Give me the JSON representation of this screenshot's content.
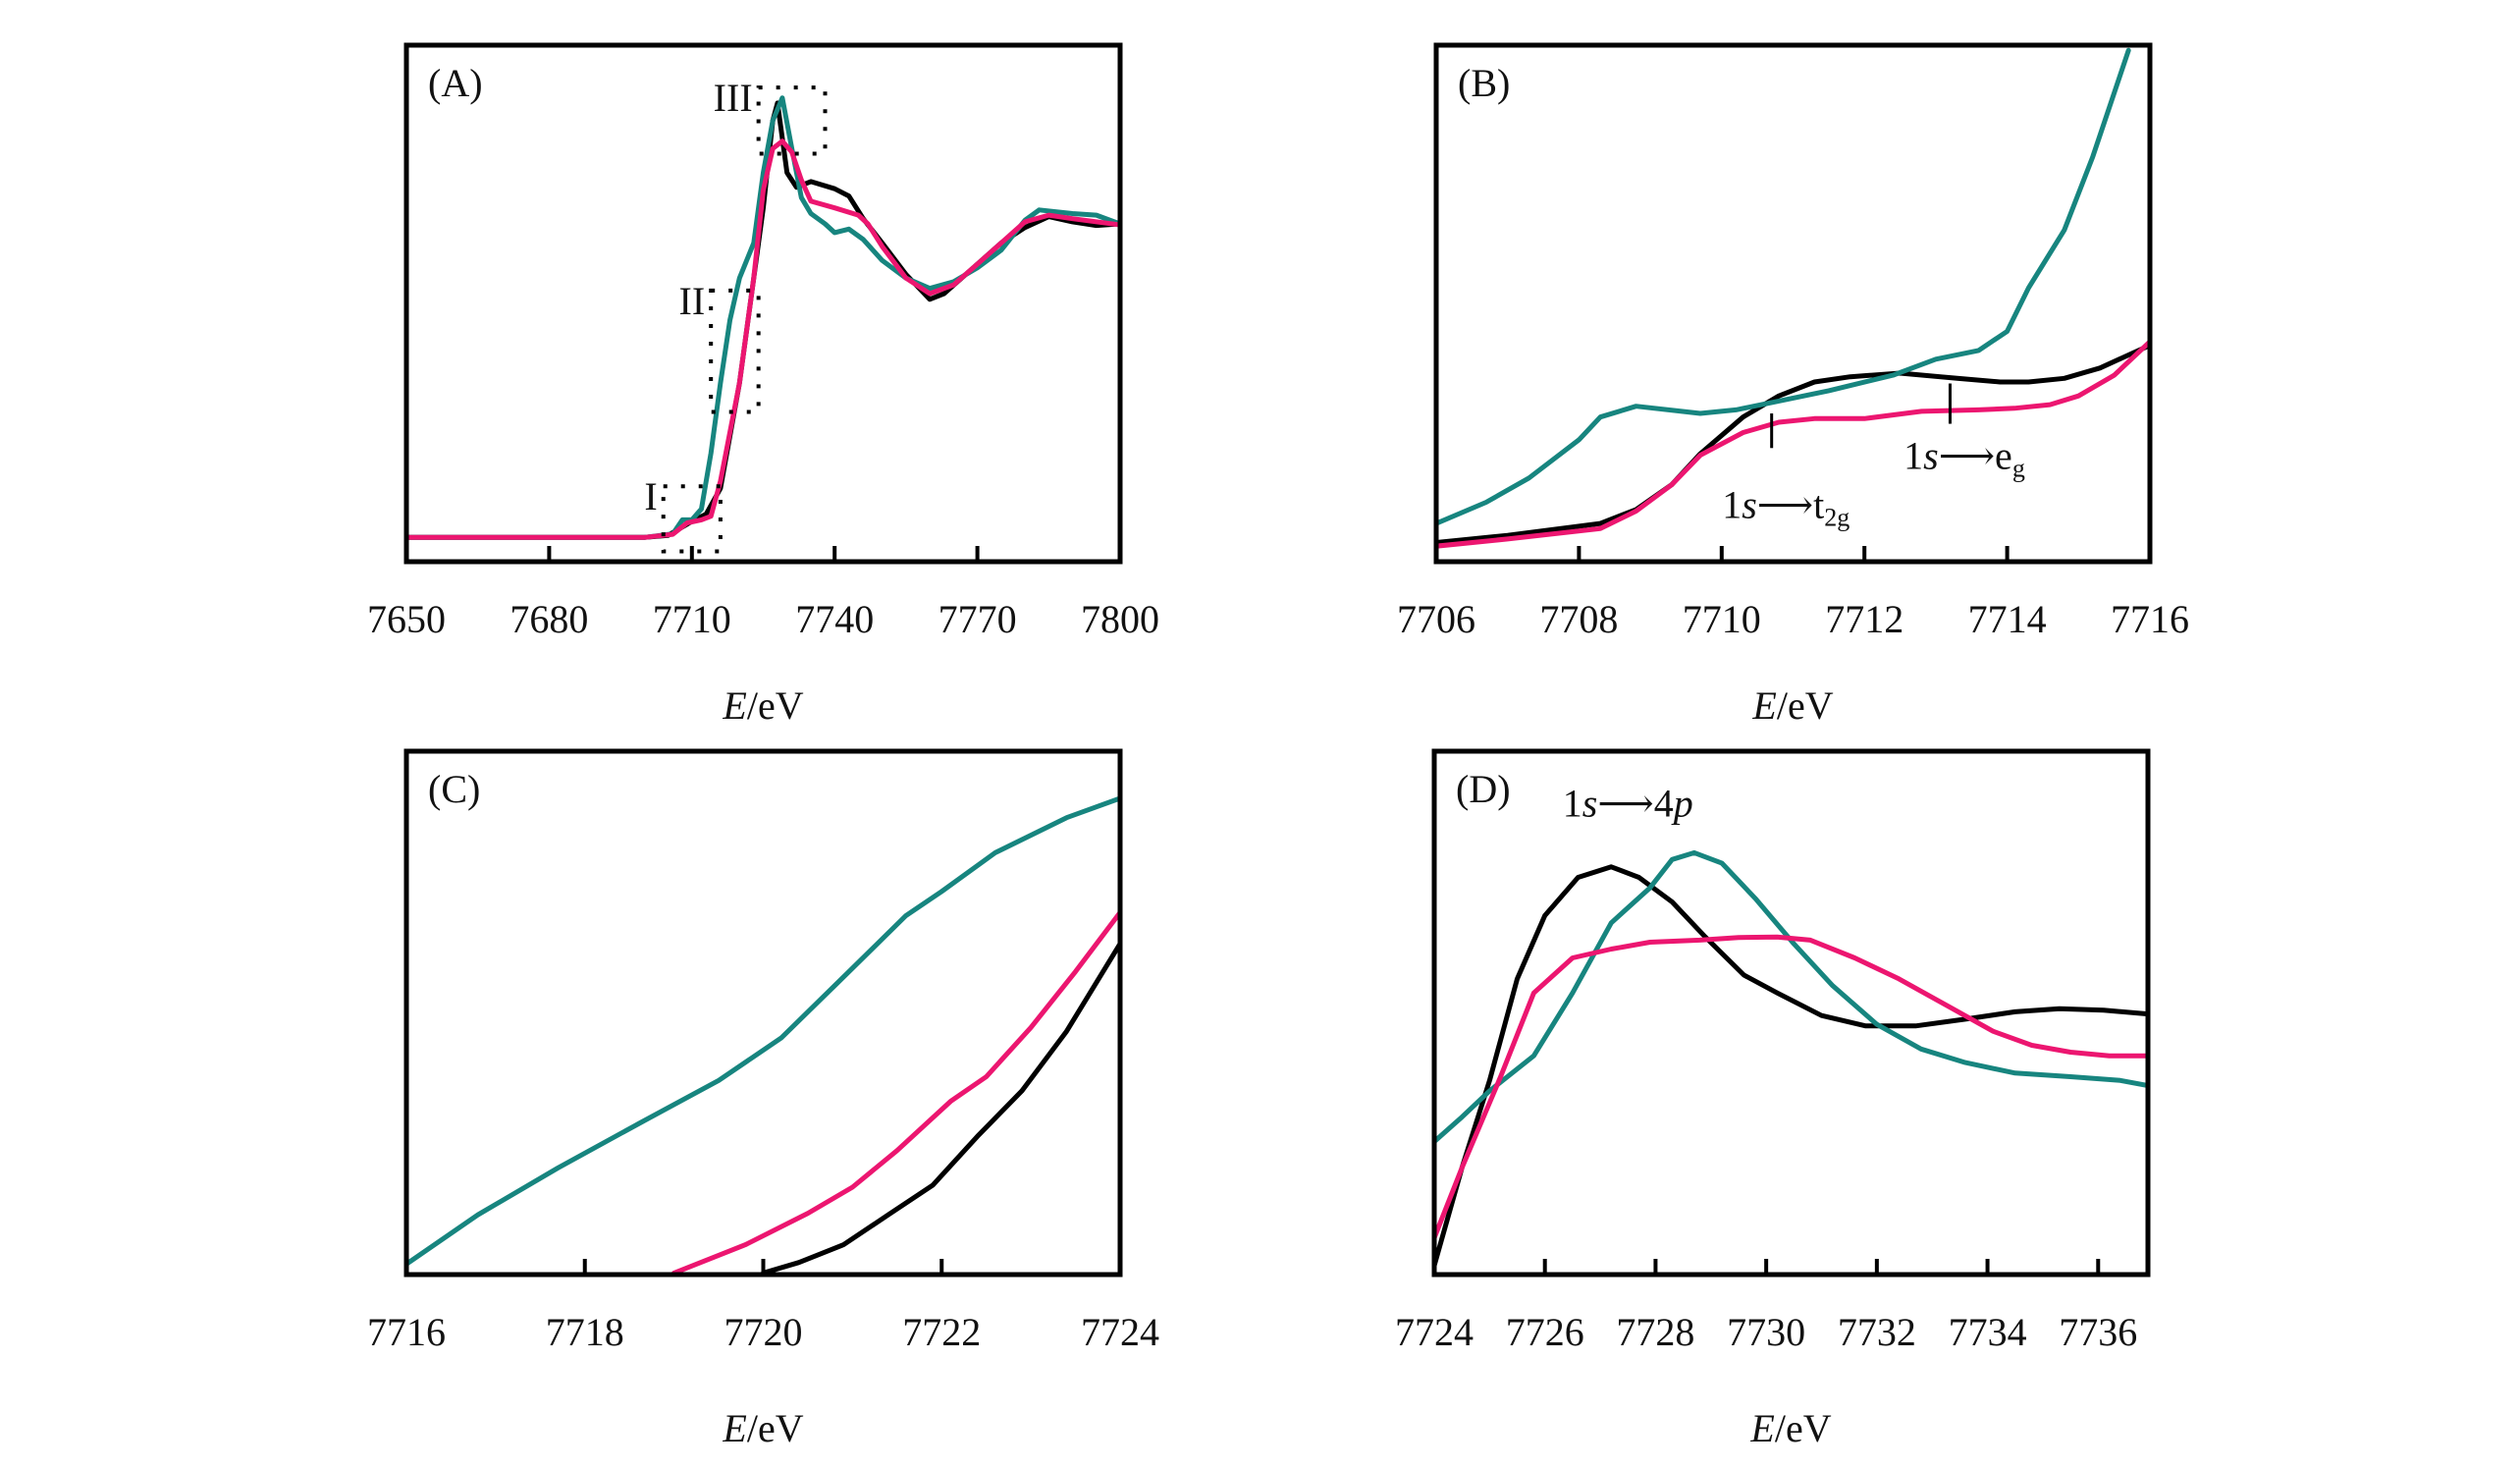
{
  "colors": {
    "black_series": "#000000",
    "teal_series": "#17857f",
    "pink_series": "#ec1670"
  },
  "chart_data": [
    {
      "id": "A",
      "type": "line",
      "panel_label": "(A)",
      "title": "",
      "xlabel_italic": "E",
      "xlabel_rest": "/eV",
      "ylabel": "",
      "xlim": [
        7650,
        7800
      ],
      "ylim": [
        0,
        1
      ],
      "xticks": [
        7650,
        7680,
        7710,
        7740,
        7770,
        7800
      ],
      "xtick_labels": [
        "7650",
        "7680",
        "7710",
        "7740",
        "7770",
        "7800"
      ],
      "grid": false,
      "series": [
        {
          "name": "black",
          "color_key": "black_series",
          "x": [
            7650,
            7700,
            7705,
            7710,
            7713,
            7716,
            7720,
            7723,
            7725,
            7727,
            7728,
            7730,
            7732,
            7735,
            7740,
            7743,
            7746,
            7750,
            7755,
            7760,
            7763,
            7770,
            7775,
            7780,
            7785,
            7790,
            7795,
            7800
          ],
          "y": [
            0.047,
            0.047,
            0.051,
            0.078,
            0.092,
            0.142,
            0.346,
            0.549,
            0.685,
            0.854,
            0.888,
            0.753,
            0.725,
            0.736,
            0.722,
            0.708,
            0.664,
            0.617,
            0.556,
            0.508,
            0.519,
            0.576,
            0.617,
            0.647,
            0.668,
            0.658,
            0.651,
            0.654
          ]
        },
        {
          "name": "teal",
          "color_key": "teal_series",
          "x": [
            7650,
            7700,
            7706,
            7708,
            7710,
            7712,
            7714,
            7716,
            7718,
            7720,
            7723,
            7725,
            7727,
            7729,
            7731,
            7733,
            7735,
            7738,
            7740,
            7743,
            7746,
            7750,
            7755,
            7760,
            7765,
            7770,
            7775,
            7780,
            7783,
            7790,
            7795,
            7800
          ],
          "y": [
            0.047,
            0.047,
            0.054,
            0.081,
            0.081,
            0.102,
            0.21,
            0.346,
            0.468,
            0.549,
            0.617,
            0.753,
            0.854,
            0.898,
            0.8,
            0.705,
            0.674,
            0.654,
            0.637,
            0.644,
            0.624,
            0.583,
            0.549,
            0.529,
            0.542,
            0.569,
            0.603,
            0.661,
            0.681,
            0.674,
            0.671,
            0.654
          ]
        },
        {
          "name": "pink",
          "color_key": "pink_series",
          "x": [
            7650,
            7700,
            7706,
            7709,
            7712,
            7714,
            7716,
            7720,
            7723,
            7725,
            7727,
            7729,
            7731,
            7733,
            7735,
            7740,
            7745,
            7747,
            7750,
            7755,
            7760,
            7765,
            7770,
            7775,
            7780,
            7785,
            7790,
            7800
          ],
          "y": [
            0.047,
            0.047,
            0.053,
            0.075,
            0.081,
            0.088,
            0.156,
            0.346,
            0.549,
            0.719,
            0.8,
            0.814,
            0.793,
            0.739,
            0.698,
            0.685,
            0.671,
            0.654,
            0.61,
            0.549,
            0.519,
            0.536,
            0.576,
            0.617,
            0.658,
            0.671,
            0.664,
            0.652
          ]
        }
      ],
      "regions": [
        {
          "label": "I",
          "x": [
            7704,
            7716
          ],
          "y": [
            0.02,
            0.146
          ]
        },
        {
          "label": "II",
          "x": [
            7714,
            7724
          ],
          "y": [
            0.29,
            0.525
          ]
        },
        {
          "label": "III",
          "x": [
            7724,
            7738
          ],
          "y": [
            0.79,
            0.918
          ]
        }
      ],
      "annotations": [],
      "markers": []
    },
    {
      "id": "B",
      "type": "line",
      "panel_label": "(B)",
      "title": "",
      "xlabel_italic": "E",
      "xlabel_rest": "/eV",
      "ylabel": "",
      "xlim": [
        7706,
        7716
      ],
      "ylim": [
        0,
        1
      ],
      "xticks": [
        7706,
        7708,
        7710,
        7712,
        7714,
        7716
      ],
      "xtick_labels": [
        "7706",
        "7708",
        "7710",
        "7712",
        "7714",
        "7716"
      ],
      "grid": false,
      "series": [
        {
          "name": "black",
          "color_key": "black_series",
          "x": [
            7706,
            7707,
            7708.3,
            7708.8,
            7709.3,
            7709.7,
            7710.3,
            7710.8,
            7711.3,
            7711.8,
            7712.5,
            7713.3,
            7713.9,
            7714.3,
            7714.8,
            7715.3,
            7716
          ],
          "y": [
            0.037,
            0.051,
            0.074,
            0.101,
            0.149,
            0.209,
            0.28,
            0.321,
            0.348,
            0.358,
            0.365,
            0.355,
            0.348,
            0.348,
            0.355,
            0.375,
            0.419
          ]
        },
        {
          "name": "teal",
          "color_key": "teal_series",
          "x": [
            7706,
            7706.7,
            7707.3,
            7708,
            7708.3,
            7708.8,
            7709.7,
            7710.2,
            7710.8,
            7711.5,
            7712.4,
            7713,
            7713.6,
            7714,
            7714.3,
            7714.8,
            7715.2,
            7715.7
          ],
          "y": [
            0.074,
            0.115,
            0.162,
            0.236,
            0.28,
            0.301,
            0.287,
            0.294,
            0.311,
            0.331,
            0.361,
            0.392,
            0.409,
            0.446,
            0.53,
            0.642,
            0.784,
            0.99
          ]
        },
        {
          "name": "pink",
          "color_key": "pink_series",
          "x": [
            7706,
            7707,
            7708.3,
            7708.8,
            7709.3,
            7709.7,
            7710.3,
            7710.8,
            7711.3,
            7712,
            7712.8,
            7713.6,
            7714.1,
            7714.6,
            7715,
            7715.5,
            7716
          ],
          "y": [
            0.03,
            0.044,
            0.064,
            0.098,
            0.149,
            0.206,
            0.25,
            0.27,
            0.277,
            0.277,
            0.291,
            0.294,
            0.297,
            0.304,
            0.321,
            0.361,
            0.426
          ]
        }
      ],
      "regions": [],
      "markers": [
        {
          "x": 7710.7,
          "y": [
            0.22,
            0.287
          ]
        },
        {
          "x": 7713.2,
          "y": [
            0.267,
            0.345
          ]
        }
      ],
      "annotations": [
        {
          "pre": "1",
          "italic": "s",
          "arrow": "⟶",
          "main": "t",
          "sub": "2g",
          "x": 7710.9,
          "y": 0.085
        },
        {
          "pre": "1",
          "italic": "s",
          "arrow": "⟶",
          "main": "e",
          "sub": "g",
          "x": 7713.4,
          "y": 0.18
        }
      ]
    },
    {
      "id": "C",
      "type": "line",
      "panel_label": "(C)",
      "title": "",
      "xlabel_italic": "E",
      "xlabel_rest": "/eV",
      "ylabel": "",
      "xlim": [
        7716,
        7724
      ],
      "ylim": [
        0,
        1
      ],
      "xticks": [
        7716,
        7718,
        7720,
        7722,
        7724
      ],
      "xtick_labels": [
        "7716",
        "7718",
        "7720",
        "7722",
        "7724"
      ],
      "grid": false,
      "series": [
        {
          "name": "black",
          "color_key": "black_series",
          "x": [
            7720,
            7720.4,
            7720.9,
            7721.4,
            7721.9,
            7722.4,
            7722.9,
            7723.4,
            7724
          ],
          "y": [
            0.003,
            0.023,
            0.057,
            0.114,
            0.171,
            0.264,
            0.351,
            0.465,
            0.632
          ]
        },
        {
          "name": "teal",
          "color_key": "teal_series",
          "x": [
            7716,
            7716.8,
            7717.7,
            7718.6,
            7719.5,
            7720.2,
            7720.8,
            7721.6,
            7722,
            7722.6,
            7723.4,
            7724
          ],
          "y": [
            0.02,
            0.114,
            0.204,
            0.288,
            0.371,
            0.452,
            0.552,
            0.686,
            0.732,
            0.806,
            0.873,
            0.91
          ]
        },
        {
          "name": "pink",
          "color_key": "pink_series",
          "x": [
            7719,
            7719.8,
            7720.5,
            7721,
            7721.5,
            7722.1,
            7722.5,
            7723,
            7723.5,
            7724
          ],
          "y": [
            0.003,
            0.057,
            0.117,
            0.167,
            0.237,
            0.331,
            0.378,
            0.472,
            0.579,
            0.692
          ]
        }
      ],
      "regions": [],
      "markers": [],
      "annotations": []
    },
    {
      "id": "D",
      "type": "line",
      "panel_label": "(D)",
      "title": "",
      "xlabel_italic": "E",
      "xlabel_rest": "/eV",
      "ylabel": "",
      "xlim": [
        7724,
        7736.9
      ],
      "ylim": [
        0,
        1
      ],
      "xticks": [
        7724,
        7726,
        7728,
        7730,
        7732,
        7734,
        7736
      ],
      "xtick_labels": [
        "7724",
        "7726",
        "7728",
        "7730",
        "7732",
        "7734",
        "7736"
      ],
      "grid": false,
      "series": [
        {
          "name": "black",
          "color_key": "black_series",
          "x": [
            7724,
            7724.5,
            7725,
            7725.5,
            7726,
            7726.6,
            7727.2,
            7727.7,
            7728.3,
            7728.9,
            7729.6,
            7730.2,
            7731,
            7731.8,
            7732.7,
            7733.6,
            7734.5,
            7735.3,
            7736.1,
            7736.9
          ],
          "y": [
            0.017,
            0.204,
            0.371,
            0.565,
            0.686,
            0.759,
            0.779,
            0.759,
            0.712,
            0.645,
            0.572,
            0.538,
            0.495,
            0.475,
            0.475,
            0.488,
            0.502,
            0.508,
            0.505,
            0.498
          ]
        },
        {
          "name": "teal",
          "color_key": "teal_series",
          "x": [
            7724,
            7724.5,
            7725,
            7725.8,
            7726.5,
            7727.2,
            7727.9,
            7728.3,
            7728.7,
            7729.2,
            7729.8,
            7730.5,
            7731.2,
            7732,
            7732.8,
            7733.6,
            7734.5,
            7735.5,
            7736.4,
            7736.9
          ],
          "y": [
            0.254,
            0.301,
            0.351,
            0.418,
            0.538,
            0.672,
            0.739,
            0.793,
            0.806,
            0.786,
            0.719,
            0.632,
            0.552,
            0.478,
            0.431,
            0.405,
            0.385,
            0.378,
            0.371,
            0.361
          ]
        },
        {
          "name": "pink",
          "color_key": "pink_series",
          "x": [
            7724,
            7724.5,
            7725.2,
            7725.8,
            7726.5,
            7727.2,
            7727.9,
            7728.8,
            7729.5,
            7730.2,
            7730.8,
            7731.6,
            7732.4,
            7733.3,
            7734.1,
            7734.8,
            7735.5,
            7736.2,
            7736.9
          ],
          "y": [
            0.07,
            0.204,
            0.378,
            0.538,
            0.605,
            0.622,
            0.635,
            0.639,
            0.644,
            0.645,
            0.639,
            0.605,
            0.565,
            0.512,
            0.465,
            0.438,
            0.425,
            0.418,
            0.418
          ]
        }
      ],
      "regions": [],
      "markers": [],
      "annotations": [
        {
          "pre": "1",
          "italic": "s",
          "arrow": "⟶",
          "main": "4",
          "italic_main": "p",
          "sub": "",
          "x": 7727.5,
          "y": 0.875
        }
      ]
    }
  ]
}
